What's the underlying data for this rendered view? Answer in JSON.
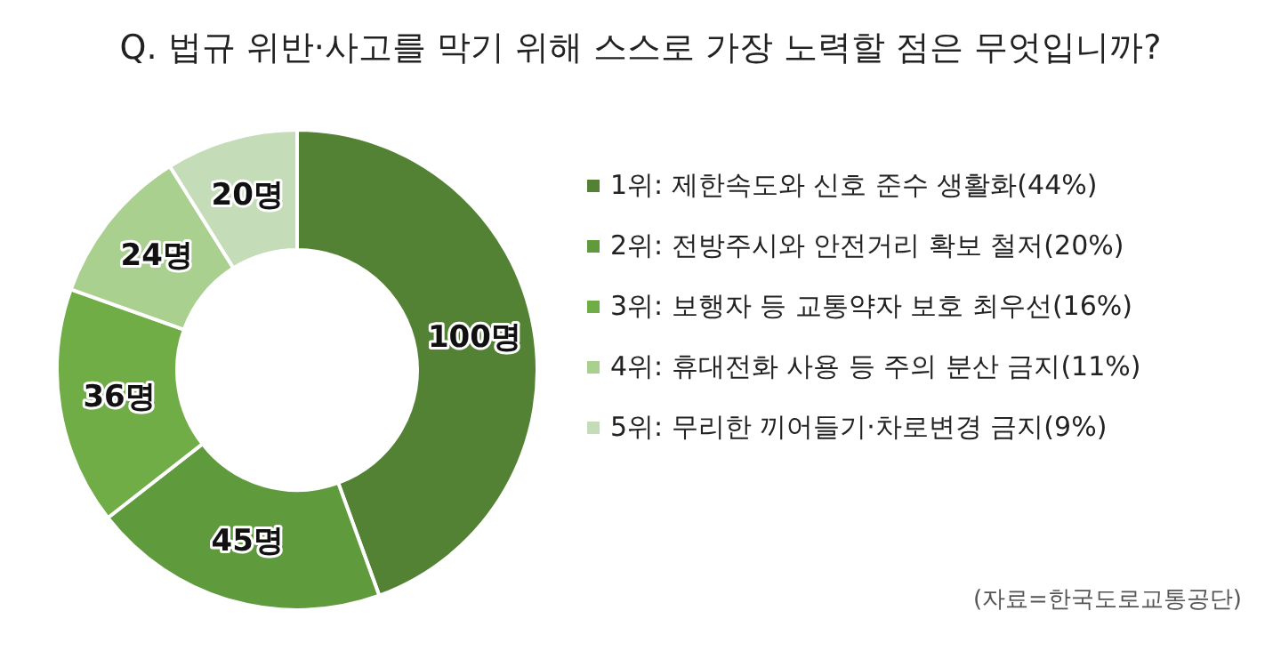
{
  "chart_data": {
    "type": "donut",
    "title": "Q. 법규 위반·사고를 막기 위해 스스로 가장 노력할 점은 무엇입니까?",
    "categories": [
      "1위: 제한속도와 신호 준수 생활화(44%)",
      "2위: 전방주시와 안전거리 확보 철저(20%)",
      "3위: 보행자 등 교통약자 보호 최우선(16%)",
      "4위: 휴대전화 사용 등 주의 분산 금지(11%)",
      "5위: 무리한 끼어들기·차로변경 금지(9%)"
    ],
    "values": [
      100,
      45,
      36,
      24,
      20
    ],
    "value_labels": [
      "100명",
      "45명",
      "36명",
      "24명",
      "20명"
    ],
    "colors": [
      "#548235",
      "#5f9a3c",
      "#70ad47",
      "#a9d08e",
      "#c5dcb8"
    ],
    "legend": "right",
    "annotations": [
      "(자료=한국도로교통공단)"
    ]
  }
}
